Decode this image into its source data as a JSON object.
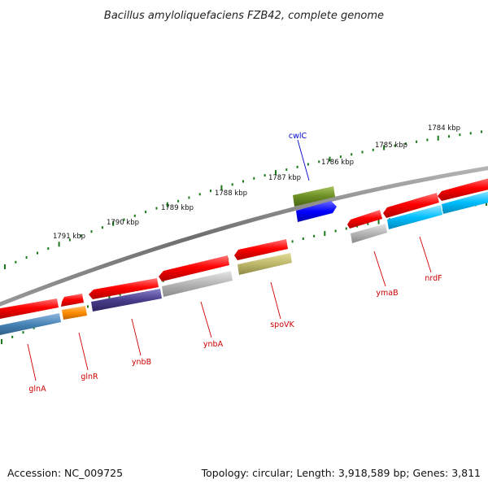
{
  "title": "Bacillus amyloliquefaciens FZB42, complete genome",
  "footer": {
    "accession": "Accession: NC_009725",
    "topology": "Topology: circular; Length: 3,918,589 bp; Genes: 3,811"
  },
  "kbp_markers": [
    "1784 kbp",
    "1785 kbp",
    "1786 kbp",
    "1787 kbp",
    "1788 kbp",
    "1789 kbp",
    "1790 kbp",
    "1791 kbp"
  ],
  "genes": [
    {
      "name": "cwlC",
      "color": "#0000cc"
    },
    {
      "name": "glnA",
      "color": "#cc0000"
    },
    {
      "name": "glnR",
      "color": "#cc0000"
    },
    {
      "name": "ynbB",
      "color": "#cc0000"
    },
    {
      "name": "ynbA",
      "color": "#cc0000"
    },
    {
      "name": "spoVK",
      "color": "#cc0000"
    },
    {
      "name": "ymaB",
      "color": "#cc0000"
    },
    {
      "name": "nrdF",
      "color": "#cc0000"
    }
  ],
  "colors": {
    "forward_strand": "#ff0000",
    "cog_blue": "#4682b4",
    "cog_orange": "#ff8c00",
    "cog_purple": "#483d8b",
    "cog_gray": "#b0b0b0",
    "cog_khaki": "#bdb76b",
    "cog_olive": "#6b8e23",
    "cog_dark_blue": "#0000ff",
    "cog_cyan": "#00bfff",
    "tick_green": "#1a7a1a",
    "backbone": "#777777"
  }
}
